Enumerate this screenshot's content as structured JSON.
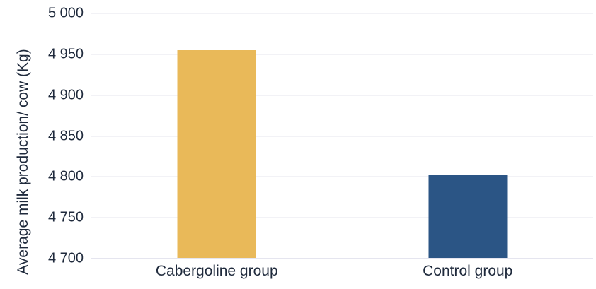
{
  "chart_data": {
    "type": "bar",
    "title": "",
    "categories": [
      "Cabergoline group",
      "Control group"
    ],
    "values": [
      4955,
      4802
    ],
    "bar_colors": [
      "#E9B959",
      "#2B5585"
    ],
    "xlabel": "",
    "ylabel": "Average milk production/ cow (Kg)",
    "ylim": [
      4700,
      5000
    ],
    "ytick_step": 50,
    "yticks": [
      {
        "value": 5000,
        "label": "5 000"
      },
      {
        "value": 4950,
        "label": "4 950"
      },
      {
        "value": 4900,
        "label": "4 900"
      },
      {
        "value": 4850,
        "label": "4 850"
      },
      {
        "value": 4800,
        "label": "4 800"
      },
      {
        "value": 4750,
        "label": "4 750"
      },
      {
        "value": 4700,
        "label": "4 700"
      }
    ],
    "grid": "horizontal",
    "legend": "none"
  },
  "style": {
    "text_color": "#1F2A3C",
    "gridline_color": "#F2F2F6",
    "axis_line_color": "#E5E5EF",
    "background": "#FFFFFF"
  }
}
